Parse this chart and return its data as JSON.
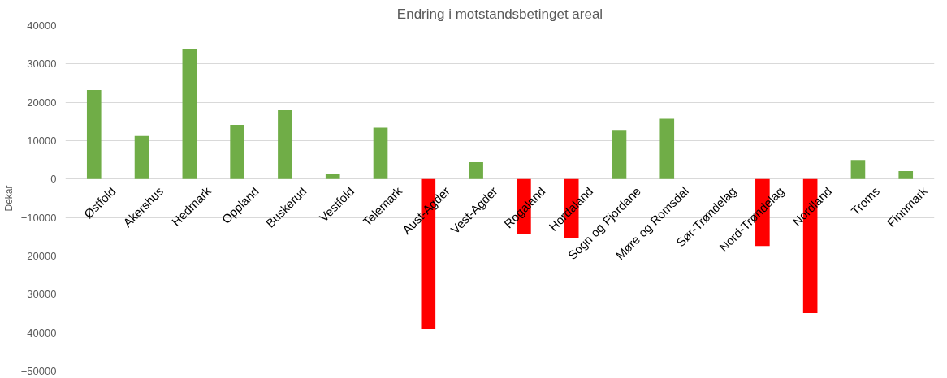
{
  "chart_data": {
    "type": "bar",
    "title": "Endring i motstandsbetinget areal",
    "ylabel": "Dekar",
    "categories": [
      "Østfold",
      "Akershus",
      "Hedmark",
      "Oppland",
      "Buskerud",
      "Vestfold",
      "Telemark",
      "Aust-Agder",
      "Vest-Agder",
      "Rogaland",
      "Hordaland",
      "Sogn og Fjordane",
      "Møre og Romsdal",
      "Sør-Trøndelag",
      "Nord-Trøndelag",
      "Nordland",
      "Troms",
      "Finnmark"
    ],
    "values": [
      23200,
      11200,
      33800,
      14100,
      17900,
      1400,
      13400,
      -39100,
      4400,
      -14400,
      -15400,
      12800,
      15700,
      0,
      -17400,
      -34900,
      5000,
      2100
    ],
    "colors": [
      "#70ad47",
      "#70ad47",
      "#70ad47",
      "#70ad47",
      "#70ad47",
      "#70ad47",
      "#70ad47",
      "#ff0000",
      "#70ad47",
      "#ff0000",
      "#ff0000",
      "#70ad47",
      "#70ad47",
      "#70ad47",
      "#ff0000",
      "#ff0000",
      "#70ad47",
      "#70ad47"
    ],
    "ylim": [
      -50000,
      40000
    ],
    "yticks": [
      -50000,
      -40000,
      -30000,
      -20000,
      -10000,
      0,
      10000,
      20000,
      30000,
      40000
    ],
    "grid": "y"
  }
}
